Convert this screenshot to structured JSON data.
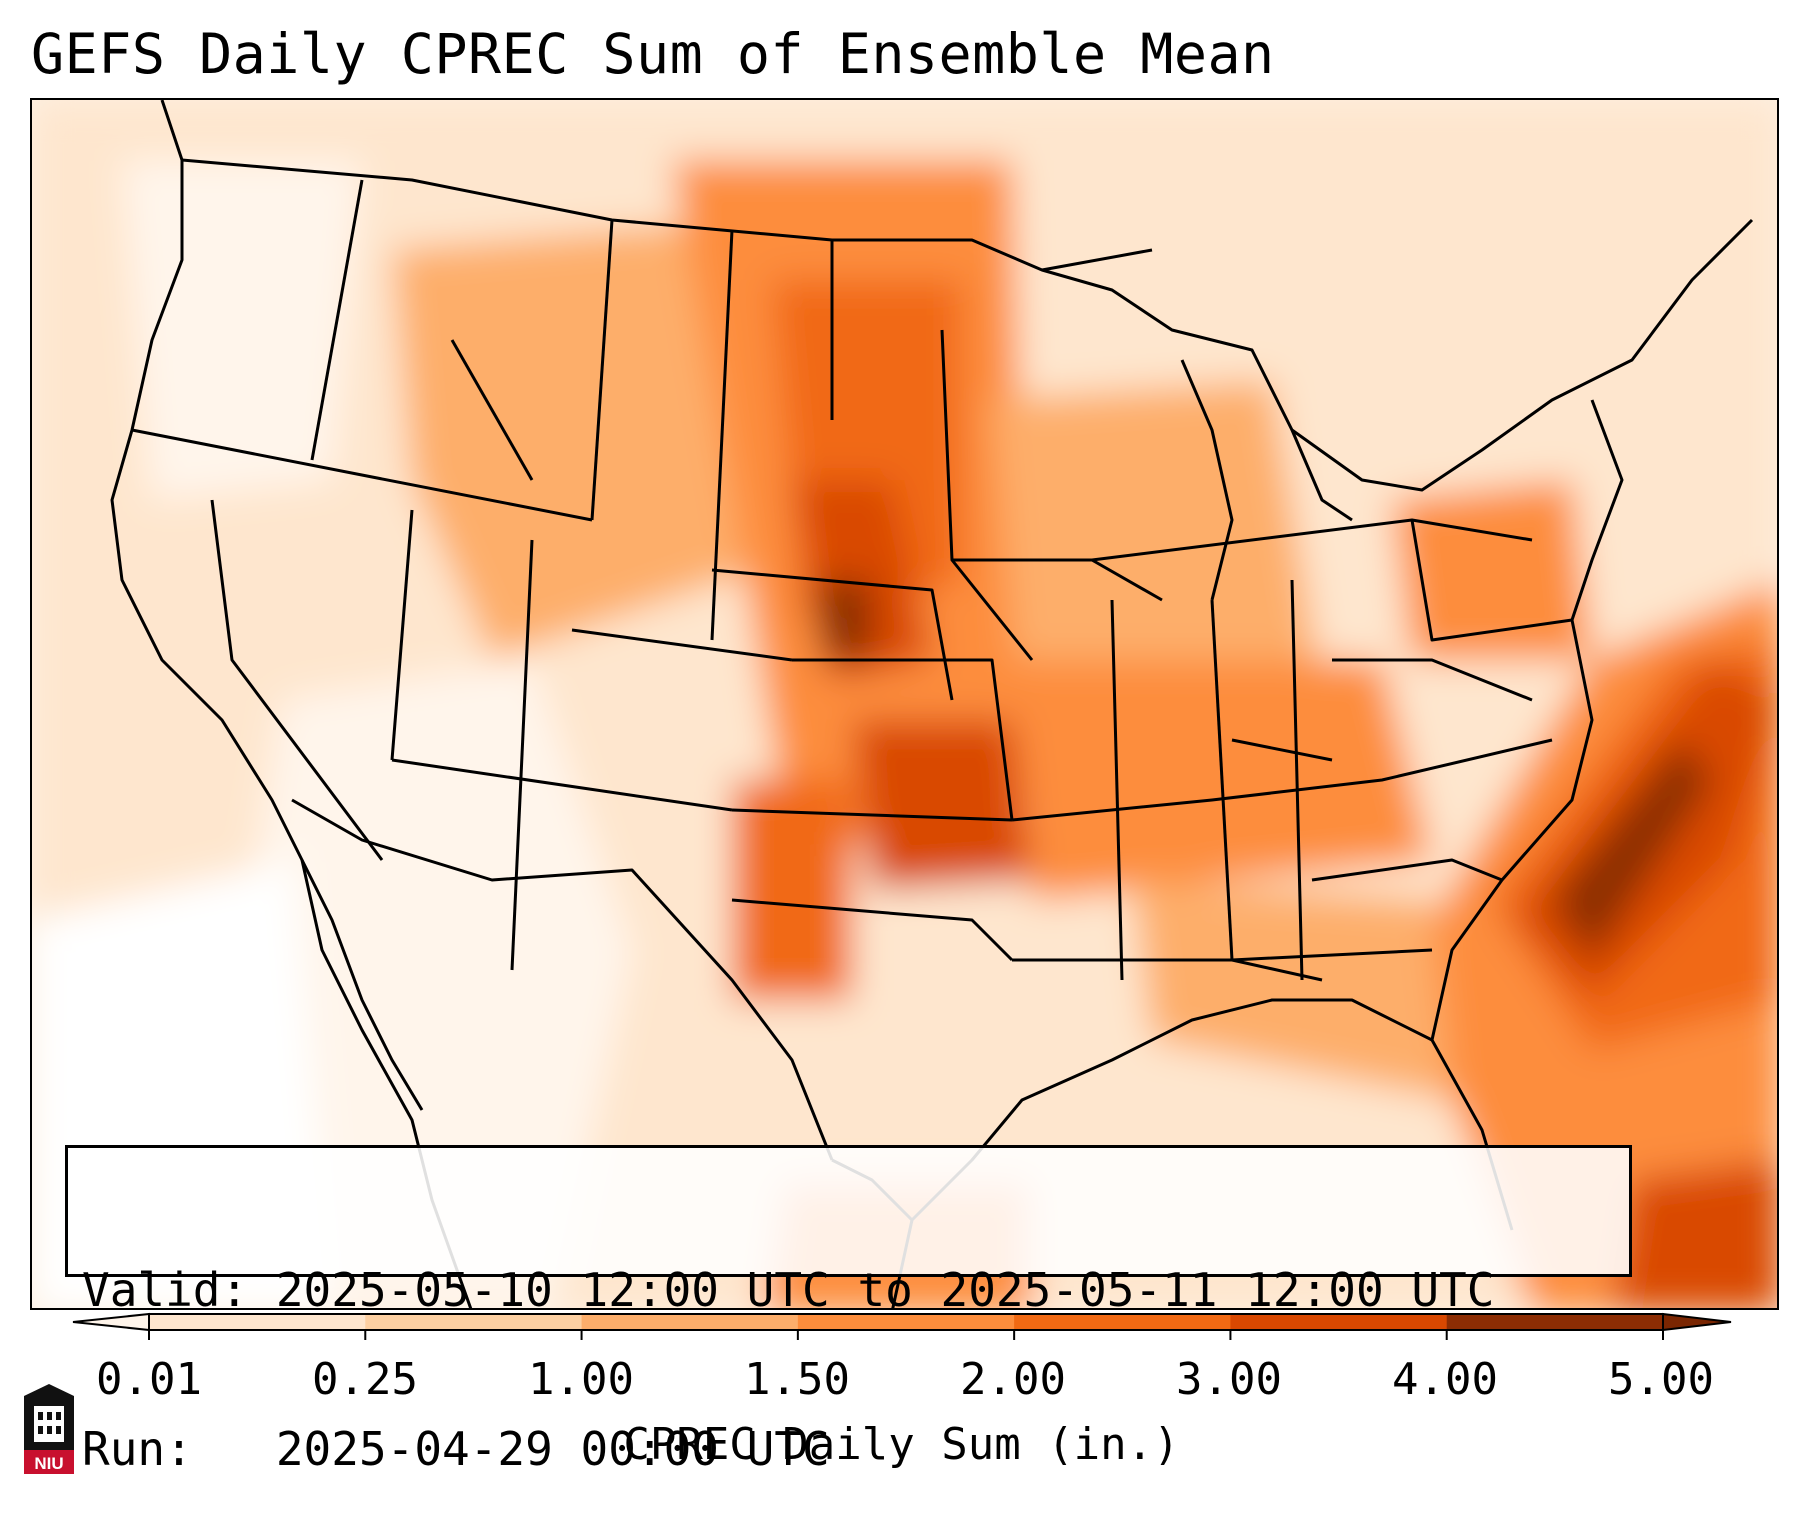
{
  "title": "GEFS Daily CPREC Sum of Ensemble Mean",
  "info": {
    "valid_line": "Valid: 2025-05-10 12:00 UTC to 2025-05-11 12:00 UTC",
    "run_line": "Run:   2025-04-29 00:00 UTC"
  },
  "colorbar": {
    "label": "CPREC Daily Sum (in.)",
    "ticks": [
      "0.01",
      "0.25",
      "1.00",
      "1.50",
      "2.00",
      "3.00",
      "4.00",
      "5.00"
    ],
    "colors": [
      "#fff5eb",
      "#fee6ce",
      "#fdd0a2",
      "#fdae6b",
      "#fd8d3c",
      "#f16913",
      "#d94801",
      "#8c2d04"
    ]
  },
  "logo": {
    "text": "NIU",
    "color": "#c8102e"
  }
}
